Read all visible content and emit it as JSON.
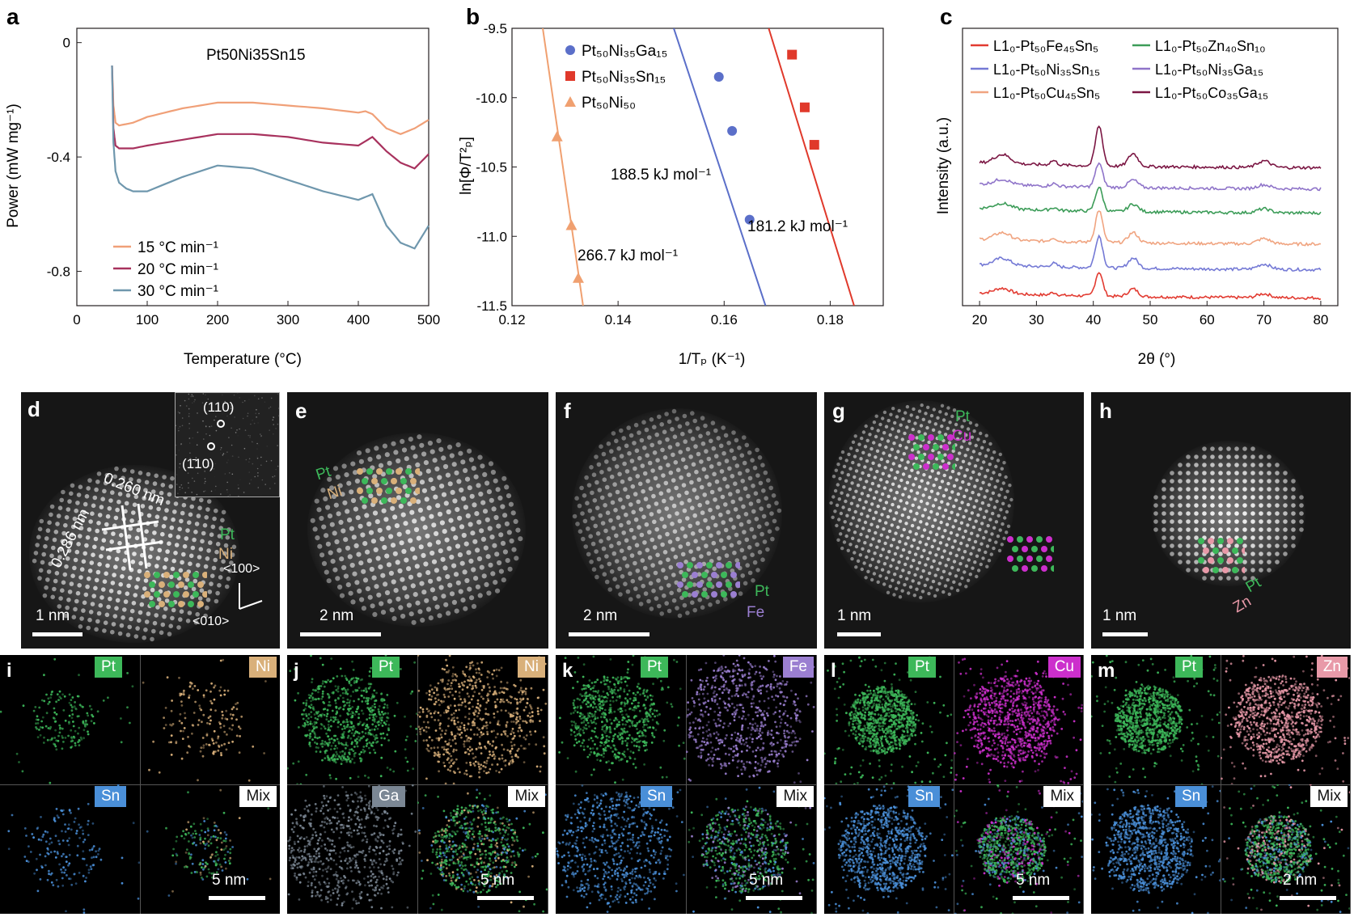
{
  "figure": {
    "panel_labels": {
      "a": "a",
      "b": "b",
      "c": "c",
      "d": "d",
      "e": "e",
      "f": "f",
      "g": "g",
      "h": "h",
      "i": "i",
      "j": "j",
      "k": "k",
      "l": "l",
      "m": "m"
    }
  },
  "chart_data": [
    {
      "type": "line",
      "panel": "a",
      "annotation": "Pt50Ni35Sn15",
      "xlabel": "Temperature (°C)",
      "ylabel": "Power (mW mg⁻¹)",
      "xlim": [
        0,
        500
      ],
      "ylim": [
        -0.92,
        0.05
      ],
      "xticks": [
        0,
        100,
        200,
        300,
        400,
        500
      ],
      "yticks": [
        0,
        -0.4,
        -0.8
      ],
      "ytick_labels": [
        "0",
        "-0.4",
        "-0.8"
      ],
      "legend_position": "bottom-left",
      "series": [
        {
          "name": "15 °C min⁻¹",
          "color": "#f0a078",
          "x": [
            50,
            52,
            55,
            60,
            80,
            100,
            150,
            200,
            250,
            300,
            350,
            400,
            410,
            420,
            440,
            460,
            480,
            500
          ],
          "y": [
            -0.08,
            -0.22,
            -0.28,
            -0.29,
            -0.28,
            -0.26,
            -0.23,
            -0.21,
            -0.21,
            -0.22,
            -0.23,
            -0.245,
            -0.24,
            -0.25,
            -0.3,
            -0.32,
            -0.3,
            -0.27
          ]
        },
        {
          "name": "20 °C min⁻¹",
          "color": "#a8325e",
          "x": [
            50,
            52,
            55,
            60,
            80,
            100,
            150,
            200,
            250,
            300,
            350,
            400,
            420,
            440,
            460,
            480,
            500
          ],
          "y": [
            -0.08,
            -0.3,
            -0.36,
            -0.37,
            -0.37,
            -0.36,
            -0.34,
            -0.32,
            -0.32,
            -0.33,
            -0.35,
            -0.36,
            -0.33,
            -0.38,
            -0.42,
            -0.44,
            -0.39
          ]
        },
        {
          "name": "30 °C min⁻¹",
          "color": "#6f97ad",
          "x": [
            50,
            52,
            55,
            60,
            70,
            80,
            100,
            150,
            200,
            250,
            300,
            350,
            400,
            420,
            440,
            460,
            480,
            500
          ],
          "y": [
            -0.08,
            -0.35,
            -0.45,
            -0.49,
            -0.51,
            -0.52,
            -0.52,
            -0.47,
            -0.43,
            -0.44,
            -0.48,
            -0.52,
            -0.55,
            -0.53,
            -0.64,
            -0.7,
            -0.72,
            -0.64
          ]
        }
      ]
    },
    {
      "type": "scatter",
      "panel": "b",
      "xlabel": "1/Tₚ (K⁻¹)",
      "ylabel": "ln[Φ/T²ₚ]",
      "xlim": [
        0.12,
        0.19
      ],
      "ylim": [
        -11.5,
        -9.5
      ],
      "xticks": [
        0.12,
        0.14,
        0.16,
        0.18
      ],
      "xtick_labels": [
        "0.12",
        "0.14",
        "0.16",
        "0.18"
      ],
      "yticks": [
        -9.5,
        -10.0,
        -10.5,
        -11.0,
        -11.5
      ],
      "ytick_labels": [
        "-9.5",
        "-10.0",
        "-10.5",
        "-11.0",
        "-11.5"
      ],
      "legend_position": "top-left",
      "series": [
        {
          "name": "Pt₅₀Ni₃₅Ga₁₅",
          "color": "#5b6fc9",
          "marker": "circle",
          "x": [
            0.159,
            0.1615,
            0.1648
          ],
          "y": [
            -9.85,
            -10.24,
            -10.88
          ],
          "fit": {
            "x": [
              0.1505,
              0.1678
            ],
            "y": [
              -9.5,
              -11.5
            ]
          },
          "energy_label": "188.5 kJ mol⁻¹"
        },
        {
          "name": "Pt₅₀Ni₃₅Sn₁₅",
          "color": "#e0392b",
          "marker": "square",
          "x": [
            0.1728,
            0.1752,
            0.177
          ],
          "y": [
            -9.69,
            -10.07,
            -10.34
          ],
          "fit": {
            "x": [
              0.1684,
              0.1845
            ],
            "y": [
              -9.5,
              -11.5
            ]
          },
          "energy_label": "181.2 kJ mol⁻¹"
        },
        {
          "name": "Pt₅₀Ni₅₀",
          "color": "#f0a070",
          "marker": "triangle",
          "x": [
            0.1285,
            0.1312,
            0.1325
          ],
          "y": [
            -10.28,
            -10.92,
            -11.3
          ],
          "fit": {
            "x": [
              0.1258,
              0.1334
            ],
            "y": [
              -9.5,
              -11.5
            ]
          },
          "energy_label": "266.7 kJ mol⁻¹"
        }
      ]
    },
    {
      "type": "line",
      "panel": "c",
      "xlabel": "2θ (°)",
      "ylabel": "Intensity (a.u.)",
      "xlim": [
        17,
        83
      ],
      "xticks": [
        20,
        30,
        40,
        50,
        60,
        70,
        80
      ],
      "legend_position": "top",
      "series": [
        {
          "name": "L1₀-Pt₅₀Fe₄₅Sn₅",
          "color": "#e23b31",
          "offset": 0.0
        },
        {
          "name": "L1₀-Pt₅₀Ni₃₅Sn₁₅",
          "color": "#7479d5",
          "offset": 1.0
        },
        {
          "name": "L1₀-Pt₅₀Cu₄₅Sn₅",
          "color": "#f0a480",
          "offset": 1.9
        },
        {
          "name": "L1₀-Pt₅₀Zn₄₀Sn₁₀",
          "color": "#3c9c58",
          "offset": 3.0
        },
        {
          "name": "L1₀-Pt₅₀Ni₃₅Ga₁₅",
          "color": "#8f74c9",
          "offset": 3.85
        },
        {
          "name": "L1₀-Pt₅₀Co₃₅Ga₁₅",
          "color": "#7b1643",
          "offset": 4.6
        }
      ],
      "peaks_2theta": [
        24,
        33,
        41,
        47,
        70
      ]
    }
  ],
  "micrographs": {
    "d": {
      "scale": "1 nm",
      "inset_spot_1": "(110)",
      "inset_spot_2": "(1̄10)",
      "d1": "0.260 nm",
      "d2": "0.286 nm",
      "el1": "Pt",
      "el2": "Ni",
      "dir1": "<100>",
      "dir2": "<010>"
    },
    "e": {
      "scale": "2 nm",
      "el1": "Pt",
      "el2": "Ni"
    },
    "f": {
      "scale": "2 nm",
      "el1": "Pt",
      "el2": "Fe"
    },
    "g": {
      "scale": "1 nm",
      "el1": "Pt",
      "el2": "Cu"
    },
    "h": {
      "scale": "1 nm",
      "el1": "Pt",
      "el2": "Zn"
    }
  },
  "eds_maps": {
    "i": {
      "tl": "Pt",
      "tr": "Ni",
      "bl": "Sn",
      "br": "Mix",
      "scale": "5 nm"
    },
    "j": {
      "tl": "Pt",
      "tr": "Ni",
      "bl": "Ga",
      "br": "Mix",
      "scale": "5 nm"
    },
    "k": {
      "tl": "Pt",
      "tr": "Fe",
      "bl": "Sn",
      "br": "Mix",
      "scale": "5 nm"
    },
    "l": {
      "tl": "Pt",
      "tr": "Cu",
      "bl": "Sn",
      "br": "Mix",
      "scale": "5 nm"
    },
    "m": {
      "tl": "Pt",
      "tr": "Zn",
      "bl": "Sn",
      "br": "Mix",
      "scale": "2 nm"
    }
  },
  "colors": {
    "pt": "#3db85a",
    "ni": "#d9b07a",
    "sn": "#4a8fd8",
    "ga": "#7b8794",
    "fe": "#9b7fd1",
    "cu": "#cc2fcc",
    "zn": "#e899a8",
    "mix": "#ffffff"
  }
}
